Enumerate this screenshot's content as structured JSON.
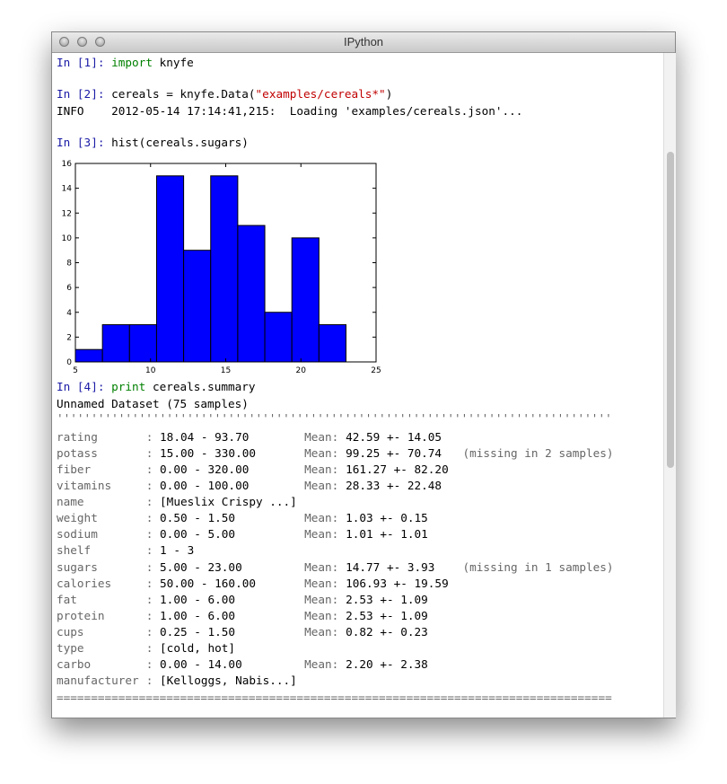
{
  "window": {
    "title": "IPython"
  },
  "cells": [
    {
      "prompt": "In [1]:",
      "code": [
        "import",
        " knyfe"
      ]
    },
    {
      "prompt": "In [2]:",
      "code": [
        "cereals = knyfe.Data(",
        "\"examples/cereals*\"",
        ")"
      ],
      "output": [
        "INFO    2012-05-14 17:14:41,215:  Loading 'examples/cereals.json'..."
      ]
    },
    {
      "prompt": "In [3]:",
      "code": [
        "hist(cereals.sugars)"
      ]
    },
    {
      "prompt": "In [4]:",
      "code": [
        "print",
        " cereals.summary"
      ],
      "output": [
        "Unnamed Dataset (75 samples)"
      ]
    }
  ],
  "chart_data": {
    "type": "histogram",
    "bins": [
      5,
      6.8,
      8.6,
      10.4,
      12.2,
      14,
      15.8,
      17.6,
      19.4,
      21.2,
      23
    ],
    "values": [
      1,
      3,
      3,
      15,
      9,
      15,
      11,
      4,
      10,
      3
    ],
    "color": "#0000ff",
    "xlim": [
      5,
      25
    ],
    "xticks": [
      5,
      10,
      15,
      20,
      25
    ],
    "ylim": [
      0,
      16
    ],
    "yticks": [
      0,
      2,
      4,
      6,
      8,
      10,
      12,
      14,
      16
    ]
  },
  "summary": {
    "top_rule": "'''''''''''''''''''''''''''''''''''''''''''''''''''''''''''''''''''''''''''''''''",
    "bottom_rule": "=================================================================================",
    "colon": ":",
    "mean_label": "Mean:",
    "rows": [
      {
        "field": "rating",
        "range": "18.04 - 93.70",
        "mean": "42.59 +- 14.05"
      },
      {
        "field": "potass",
        "range": "15.00 - 330.00",
        "mean": "99.25 +- 70.74",
        "note": "(missing in 2 samples)"
      },
      {
        "field": "fiber",
        "range": "0.00 - 320.00",
        "mean": "161.27 +- 82.20"
      },
      {
        "field": "vitamins",
        "range": "0.00 - 100.00",
        "mean": "28.33 +- 22.48"
      },
      {
        "field": "name",
        "range": "[Mueslix Crispy ...]"
      },
      {
        "field": "weight",
        "range": "0.50 - 1.50",
        "mean": "1.03 +- 0.15"
      },
      {
        "field": "sodium",
        "range": "0.00 - 5.00",
        "mean": "1.01 +- 1.01"
      },
      {
        "field": "shelf",
        "range": "1 - 3"
      },
      {
        "field": "sugars",
        "range": "5.00 - 23.00",
        "mean": "14.77 +- 3.93",
        "note": "(missing in 1 samples)"
      },
      {
        "field": "calories",
        "range": "50.00 - 160.00",
        "mean": "106.93 +- 19.59"
      },
      {
        "field": "fat",
        "range": "1.00 - 6.00",
        "mean": "2.53 +- 1.09"
      },
      {
        "field": "protein",
        "range": "1.00 - 6.00",
        "mean": "2.53 +- 1.09"
      },
      {
        "field": "cups",
        "range": "0.25 - 1.50",
        "mean": "0.82 +- 0.23"
      },
      {
        "field": "type",
        "range": "[cold, hot]"
      },
      {
        "field": "carbo",
        "range": "0.00 - 14.00",
        "mean": "2.20 +- 2.38"
      },
      {
        "field": "manufacturer",
        "range": "[Kelloggs, Nabis...]"
      }
    ]
  }
}
